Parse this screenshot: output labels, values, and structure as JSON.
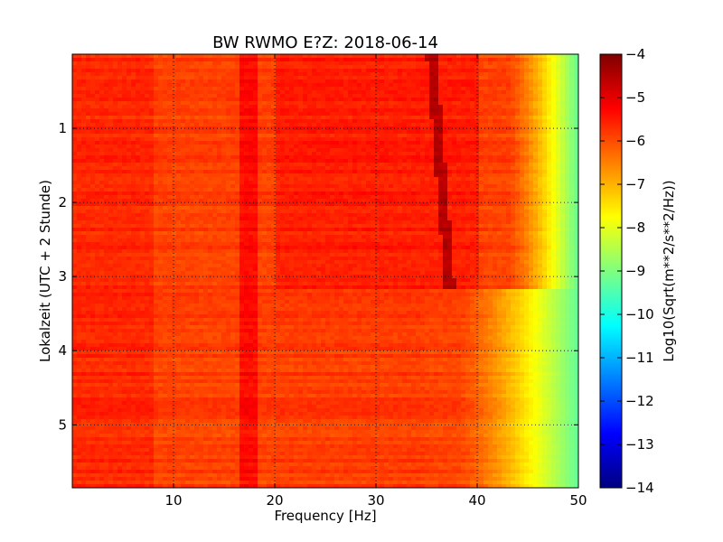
{
  "chart_data": {
    "type": "heatmap",
    "title": "BW RWMO E?Z: 2018-06-14",
    "xlabel": "Frequency [Hz]",
    "ylabel": "Lokalzeit (UTC + 2 Stunde)",
    "colorbar_label": "Log10(Sqrt(m**2/s**2/Hz))",
    "xlim": [
      0,
      50
    ],
    "ylim": [
      5.85,
      0
    ],
    "x_ticks": [
      10,
      20,
      30,
      40,
      50
    ],
    "y_ticks": [
      1,
      2,
      3,
      4,
      5
    ],
    "colorbar_range": [
      -14,
      -4
    ],
    "colorbar_ticks": [
      -4,
      -5,
      -6,
      -7,
      -8,
      -9,
      -10,
      -11,
      -12,
      -13,
      -14
    ],
    "colormap": "jet",
    "grid": true,
    "features": {
      "bright_vertical_line_hz": 17.3,
      "diagonal_line_start": {
        "freq_hz": 35.5,
        "time_h": 0
      },
      "diagonal_line_end": {
        "freq_hz": 37.3,
        "time_h": 3.15
      },
      "level_change_time_h": 3.15,
      "rolloff_before_change_hz": [
        43,
        50
      ],
      "rolloff_after_change_hz": [
        38,
        50
      ],
      "background_level": -5.8,
      "peak_level": -4.5,
      "high_frequency_level": -9.3
    }
  }
}
